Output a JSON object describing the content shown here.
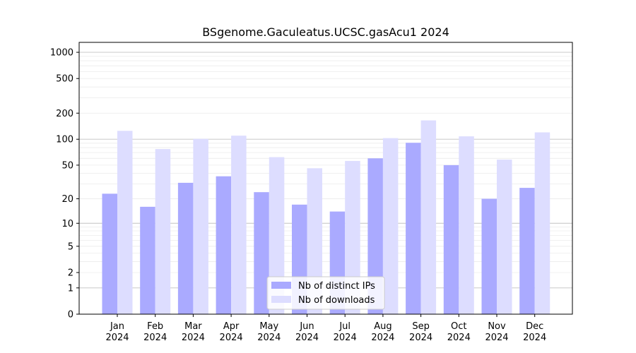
{
  "chart_data": {
    "type": "bar",
    "title": "BSgenome.Gaculeatus.UCSC.gasAcu1 2024",
    "xlabel": "",
    "ylabel": "",
    "y_scale": "log(1+y)",
    "ylim": [
      0,
      1300
    ],
    "y_ticks": [
      0,
      1,
      2,
      5,
      10,
      20,
      50,
      100,
      200,
      500,
      1000
    ],
    "y_tick_labels": [
      "0",
      "1",
      "2",
      "5",
      "10",
      "20",
      "50",
      "100",
      "200",
      "500",
      "1000"
    ],
    "grid": true,
    "legend_position": "bottom-center",
    "categories": [
      [
        "Jan",
        "2024"
      ],
      [
        "Feb",
        "2024"
      ],
      [
        "Mar",
        "2024"
      ],
      [
        "Apr",
        "2024"
      ],
      [
        "May",
        "2024"
      ],
      [
        "Jun",
        "2024"
      ],
      [
        "Jul",
        "2024"
      ],
      [
        "Aug",
        "2024"
      ],
      [
        "Sep",
        "2024"
      ],
      [
        "Oct",
        "2024"
      ],
      [
        "Nov",
        "2024"
      ],
      [
        "Dec",
        "2024"
      ]
    ],
    "series": [
      {
        "name": "Nb of distinct IPs",
        "color": "#aaaaff",
        "values": [
          23,
          16,
          31,
          37,
          24,
          17,
          14,
          60,
          91,
          50,
          20,
          27
        ]
      },
      {
        "name": "Nb of downloads",
        "color": "#ddddff",
        "values": [
          125,
          77,
          101,
          110,
          62,
          46,
          56,
          103,
          165,
          108,
          58,
          120
        ]
      }
    ]
  }
}
